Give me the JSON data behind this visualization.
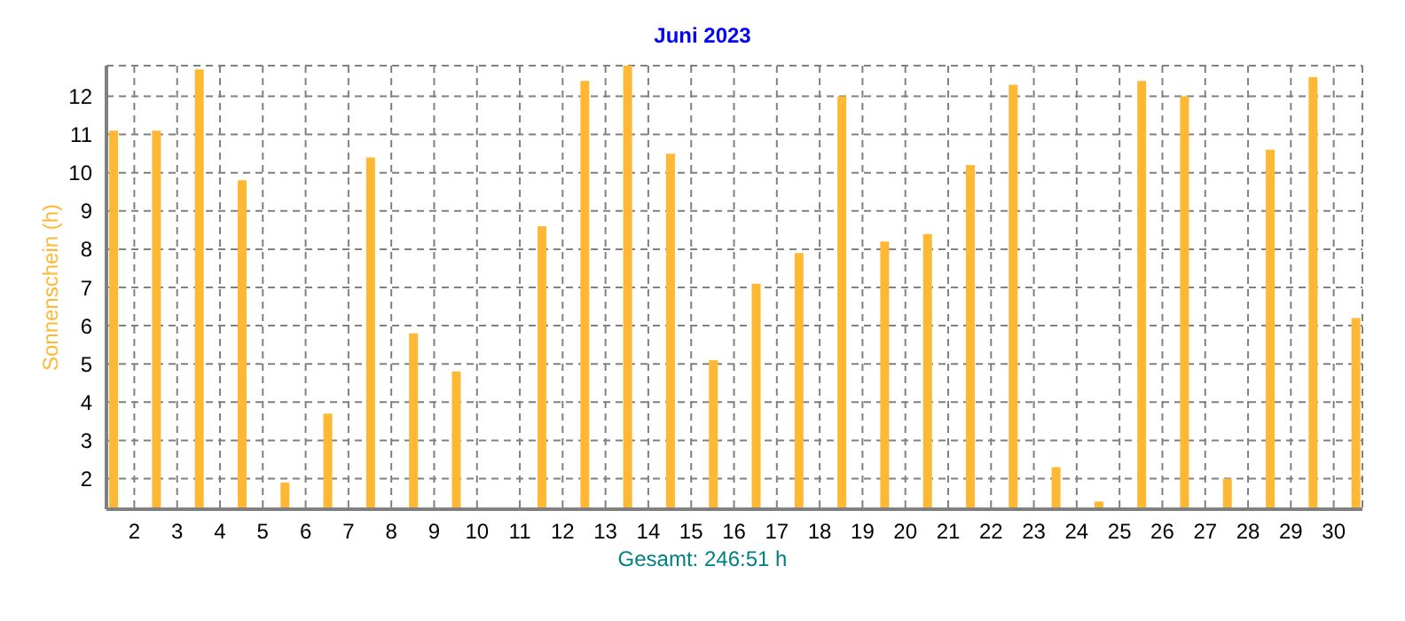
{
  "chart_data": {
    "type": "bar",
    "title": "Juni 2023",
    "ylabel": "Sonnenschein  (h)",
    "annotations": [
      "Gesamt: 246:51 h"
    ],
    "x": [
      1.5,
      2.5,
      3.5,
      4.5,
      5.5,
      6.5,
      7.5,
      8.5,
      9.5,
      10.5,
      11.5,
      12.5,
      13.5,
      14.5,
      15.5,
      16.5,
      17.5,
      18.5,
      19.5,
      20.5,
      21.5,
      22.5,
      23.5,
      24.5,
      25.5,
      26.5,
      27.5,
      28.5,
      29.5,
      30.5
    ],
    "values": [
      11.1,
      11.1,
      12.7,
      9.8,
      1.9,
      3.7,
      10.4,
      5.8,
      4.8,
      1.2,
      8.6,
      12.4,
      12.8,
      10.5,
      5.1,
      7.1,
      7.9,
      12.0,
      8.2,
      8.4,
      10.2,
      12.3,
      2.3,
      1.4,
      12.4,
      12.0,
      2.0,
      10.6,
      12.5,
      6.2
    ],
    "color": "#ffb833",
    "xlim": [
      1.35,
      30.67
    ],
    "xticks": [
      2,
      3,
      4,
      5,
      6,
      7,
      8,
      9,
      10,
      11,
      12,
      13,
      14,
      15,
      16,
      17,
      18,
      19,
      20,
      21,
      22,
      23,
      24,
      25,
      26,
      27,
      28,
      29,
      30
    ],
    "ylim": [
      1.2,
      12.8
    ],
    "yticks": [
      2,
      3,
      4,
      5,
      6,
      7,
      8,
      9,
      10,
      11,
      12
    ],
    "grid": true,
    "legend": false
  }
}
